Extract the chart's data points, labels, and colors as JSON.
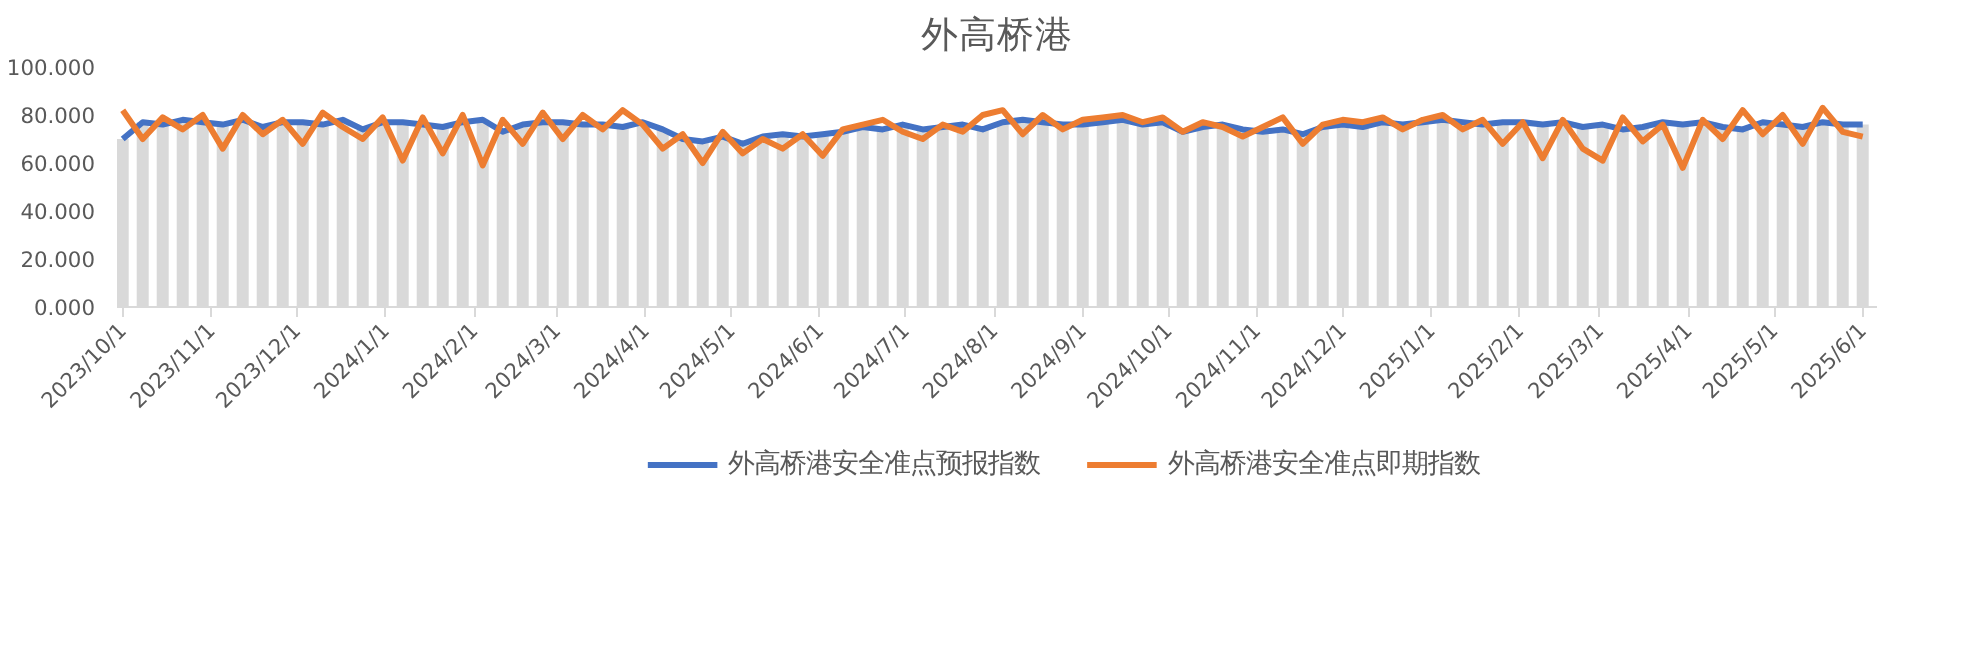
{
  "chart_data": {
    "type": "line",
    "title": "外高桥港",
    "x": [
      "2023-10-01",
      "2023-10-08",
      "2023-10-15",
      "2023-10-22",
      "2023-10-29",
      "2023-11-05",
      "2023-11-12",
      "2023-11-19",
      "2023-11-26",
      "2023-12-03",
      "2023-12-10",
      "2023-12-17",
      "2023-12-24",
      "2023-12-31",
      "2024-01-07",
      "2024-01-14",
      "2024-01-21",
      "2024-01-28",
      "2024-02-04",
      "2024-02-11",
      "2024-02-18",
      "2024-02-25",
      "2024-03-03",
      "2024-03-10",
      "2024-03-17",
      "2024-03-24",
      "2024-03-31",
      "2024-04-07",
      "2024-04-14",
      "2024-04-21",
      "2024-04-28",
      "2024-05-05",
      "2024-05-12",
      "2024-05-19",
      "2024-05-26",
      "2024-06-02",
      "2024-06-09",
      "2024-06-16",
      "2024-06-23",
      "2024-06-30",
      "2024-07-07",
      "2024-07-14",
      "2024-07-21",
      "2024-07-28",
      "2024-08-04",
      "2024-08-11",
      "2024-08-18",
      "2024-08-25",
      "2024-09-01",
      "2024-09-08",
      "2024-09-15",
      "2024-09-22",
      "2024-09-29",
      "2024-10-06",
      "2024-10-13",
      "2024-10-20",
      "2024-10-27",
      "2024-11-03",
      "2024-11-10",
      "2024-11-17",
      "2024-11-24",
      "2024-12-01",
      "2024-12-08",
      "2024-12-15",
      "2024-12-22",
      "2024-12-29",
      "2025-01-05",
      "2025-01-12",
      "2025-01-19",
      "2025-01-26",
      "2025-02-02",
      "2025-02-09",
      "2025-02-16",
      "2025-02-23",
      "2025-03-02",
      "2025-03-09",
      "2025-03-16",
      "2025-03-23",
      "2025-03-30",
      "2025-04-06",
      "2025-04-13",
      "2025-04-20",
      "2025-04-27",
      "2025-05-04",
      "2025-05-11",
      "2025-05-18",
      "2025-05-25",
      "2025-06-01"
    ],
    "series": [
      {
        "type": "bar",
        "color": "#d9d9d9",
        "values": [
          70,
          77,
          76,
          78,
          77,
          76,
          78,
          75,
          77,
          77,
          76,
          78,
          74,
          77,
          77,
          76,
          75,
          77,
          78,
          73,
          76,
          77,
          77,
          76,
          76,
          75,
          77,
          74,
          70,
          69,
          71,
          68,
          71,
          72,
          71,
          72,
          73,
          75,
          74,
          76,
          74,
          75,
          76,
          74,
          77,
          78,
          77,
          76,
          76,
          77,
          78,
          76,
          77,
          73,
          75,
          76,
          74,
          73,
          74,
          72,
          75,
          76,
          75,
          77,
          76,
          77,
          78,
          77,
          76,
          77,
          77,
          76,
          77,
          75,
          76,
          74,
          75,
          77,
          76,
          77,
          75,
          74,
          77,
          76,
          75,
          77,
          76,
          76
        ]
      },
      {
        "name": "外高桥港安全准点预报指数",
        "color": "#4472c4",
        "values": [
          70,
          77,
          76,
          78,
          77,
          76,
          78,
          75,
          77,
          77,
          76,
          78,
          74,
          77,
          77,
          76,
          75,
          77,
          78,
          73,
          76,
          77,
          77,
          76,
          76,
          75,
          77,
          74,
          70,
          69,
          71,
          68,
          71,
          72,
          71,
          72,
          73,
          75,
          74,
          76,
          74,
          75,
          76,
          74,
          77,
          78,
          77,
          76,
          76,
          77,
          78,
          76,
          77,
          73,
          75,
          76,
          74,
          73,
          74,
          72,
          75,
          76,
          75,
          77,
          76,
          77,
          78,
          77,
          76,
          77,
          77,
          76,
          77,
          75,
          76,
          74,
          75,
          77,
          76,
          77,
          75,
          74,
          77,
          76,
          75,
          77,
          76,
          76
        ]
      },
      {
        "name": "外高桥港安全准点即期指数",
        "color": "#ed7d31",
        "values": [
          82,
          70,
          79,
          74,
          80,
          66,
          80,
          72,
          78,
          68,
          81,
          75,
          70,
          79,
          61,
          79,
          64,
          80,
          59,
          78,
          68,
          81,
          70,
          80,
          74,
          82,
          76,
          66,
          72,
          60,
          73,
          64,
          70,
          66,
          72,
          63,
          74,
          76,
          78,
          73,
          70,
          76,
          73,
          80,
          82,
          72,
          80,
          74,
          78,
          79,
          80,
          77,
          79,
          73,
          77,
          75,
          71,
          75,
          79,
          68,
          76,
          78,
          77,
          79,
          74,
          78,
          80,
          74,
          78,
          68,
          77,
          62,
          78,
          66,
          61,
          79,
          69,
          76,
          58,
          78,
          70,
          82,
          72,
          80,
          68,
          83,
          73,
          71
        ]
      }
    ],
    "xlim": [
      "2023-09-29",
      "2025-06-06"
    ],
    "xticks": [
      {
        "value": "2023-10-01",
        "label": "2023/10/1"
      },
      {
        "value": "2023-11-01",
        "label": "2023/11/1"
      },
      {
        "value": "2023-12-01",
        "label": "2023/12/1"
      },
      {
        "value": "2024-01-01",
        "label": "2024/1/1"
      },
      {
        "value": "2024-02-01",
        "label": "2024/2/1"
      },
      {
        "value": "2024-03-01",
        "label": "2024/3/1"
      },
      {
        "value": "2024-04-01",
        "label": "2024/4/1"
      },
      {
        "value": "2024-05-01",
        "label": "2024/5/1"
      },
      {
        "value": "2024-06-01",
        "label": "2024/6/1"
      },
      {
        "value": "2024-07-01",
        "label": "2024/7/1"
      },
      {
        "value": "2024-08-01",
        "label": "2024/8/1"
      },
      {
        "value": "2024-09-01",
        "label": "2024/9/1"
      },
      {
        "value": "2024-10-01",
        "label": "2024/10/1"
      },
      {
        "value": "2024-11-01",
        "label": "2024/11/1"
      },
      {
        "value": "2024-12-01",
        "label": "2024/12/1"
      },
      {
        "value": "2025-01-01",
        "label": "2025/1/1"
      },
      {
        "value": "2025-02-01",
        "label": "2025/2/1"
      },
      {
        "value": "2025-03-01",
        "label": "2025/3/1"
      },
      {
        "value": "2025-04-01",
        "label": "2025/4/1"
      },
      {
        "value": "2025-05-01",
        "label": "2025/5/1"
      },
      {
        "value": "2025-06-01",
        "label": "2025/6/1"
      }
    ],
    "ylim": [
      0,
      100
    ],
    "yticks": [
      {
        "value": 0,
        "label": "0.000"
      },
      {
        "value": 20,
        "label": "20.000"
      },
      {
        "value": 40,
        "label": "40.000"
      },
      {
        "value": 60,
        "label": "60.000"
      },
      {
        "value": 80,
        "label": "80.000"
      },
      {
        "value": 100,
        "label": "100.000"
      }
    ],
    "grid": false,
    "legend": "bottom",
    "line_style": "solid"
  }
}
